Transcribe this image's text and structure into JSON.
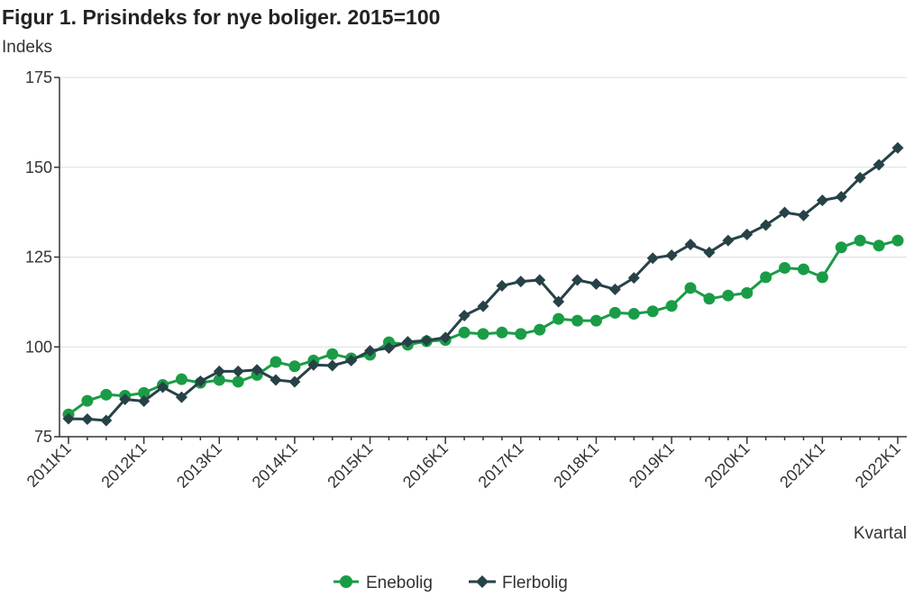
{
  "chart_data": {
    "type": "line",
    "title": "Figur 1. Prisindeks for nye boliger. 2015=100",
    "ylabel": "Indeks",
    "xlabel": "Kvartal",
    "ylim": [
      75,
      175
    ],
    "yticks": [
      75,
      100,
      125,
      150,
      175
    ],
    "grid": true,
    "legend_position": "bottom-center",
    "x_tick_labels": [
      "2011K1",
      "2012K1",
      "2013K1",
      "2014K1",
      "2015K1",
      "2016K1",
      "2017K1",
      "2018K1",
      "2019K1",
      "2020K1",
      "2021K1",
      "2022K1"
    ],
    "x": [
      "2011K1",
      "2011K2",
      "2011K3",
      "2011K4",
      "2012K1",
      "2012K2",
      "2012K3",
      "2012K4",
      "2013K1",
      "2013K2",
      "2013K3",
      "2013K4",
      "2014K1",
      "2014K2",
      "2014K3",
      "2014K4",
      "2015K1",
      "2015K2",
      "2015K3",
      "2015K4",
      "2016K1",
      "2016K2",
      "2016K3",
      "2016K4",
      "2017K1",
      "2017K2",
      "2017K3",
      "2017K4",
      "2018K1",
      "2018K2",
      "2018K3",
      "2018K4",
      "2019K1",
      "2019K2",
      "2019K3",
      "2019K4",
      "2020K1",
      "2020K2",
      "2020K3",
      "2020K4",
      "2021K1",
      "2021K2",
      "2021K3",
      "2021K4",
      "2022K1"
    ],
    "series": [
      {
        "name": "Enebolig",
        "color": "#1a9c46",
        "marker": "circle",
        "values": [
          81.2,
          85.0,
          86.7,
          86.4,
          87.2,
          89.4,
          91.0,
          90.0,
          90.8,
          90.3,
          92.2,
          95.8,
          94.6,
          96.2,
          98.0,
          96.8,
          97.8,
          101.3,
          100.6,
          101.6,
          101.9,
          104.0,
          103.6,
          104.0,
          103.6,
          104.8,
          107.8,
          107.3,
          107.3,
          109.5,
          109.2,
          109.9,
          111.4,
          116.4,
          113.4,
          114.3,
          115.0,
          119.4,
          122.0,
          121.6,
          119.4,
          127.7,
          129.6,
          128.2,
          129.6
        ]
      },
      {
        "name": "Flerbolig",
        "color": "#274247",
        "marker": "diamond",
        "values": [
          80.0,
          79.9,
          79.5,
          85.4,
          84.9,
          88.8,
          86.0,
          90.4,
          93.2,
          93.2,
          93.6,
          90.8,
          90.3,
          95.0,
          94.8,
          96.2,
          98.9,
          99.7,
          101.4,
          101.8,
          102.6,
          108.7,
          111.3,
          117.0,
          118.2,
          118.6,
          112.6,
          118.6,
          117.5,
          116.0,
          119.2,
          124.7,
          125.5,
          128.5,
          126.3,
          129.6,
          131.3,
          133.9,
          137.4,
          136.6,
          140.8,
          141.8,
          147.1,
          150.7,
          155.4
        ]
      }
    ]
  }
}
